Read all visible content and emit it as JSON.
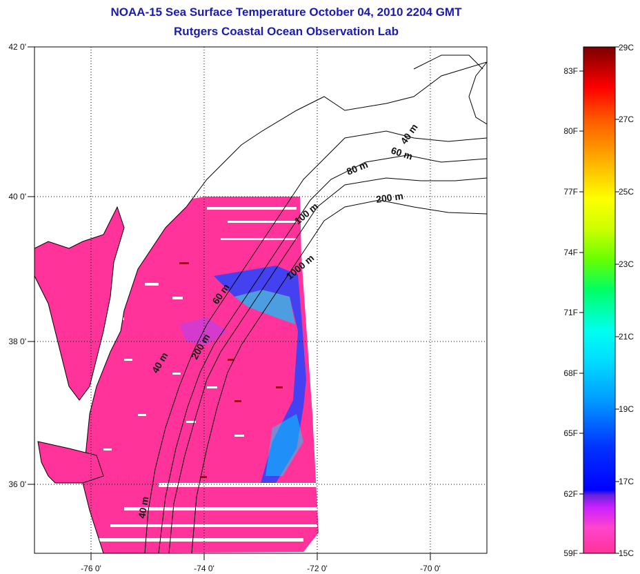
{
  "title": "NOAA-15 Sea Surface Temperature October 04, 2010 2204 GMT",
  "subtitle": "Rutgers Coastal Ocean Observation Lab",
  "map": {
    "lon_range": [
      -77,
      -69
    ],
    "lat_range": [
      35,
      42
    ],
    "lon_ticks": [
      "-76 0'",
      "-74 0'",
      "-72 0'",
      "-70 0'"
    ],
    "lat_ticks": [
      "42 0'",
      "40 0'",
      "38 0'",
      "36 0'"
    ],
    "isobath_labels": [
      "40 m",
      "60 m",
      "80 m",
      "200 m",
      "100 m",
      "1000 m",
      "60 m",
      "200 m",
      "40 m",
      "40 m"
    ],
    "colors": {
      "warm_sst": "#ff3399",
      "cool_sst": "#0033ff",
      "coastline": "#000000"
    }
  },
  "colorbar": {
    "left_labels": [
      "83F",
      "80F",
      "77F",
      "74F",
      "71F",
      "68F",
      "65F",
      "62F",
      "59F"
    ],
    "right_labels": [
      "29C",
      "27C",
      "25C",
      "23C",
      "21C",
      "19C",
      "17C",
      "15C"
    ]
  }
}
